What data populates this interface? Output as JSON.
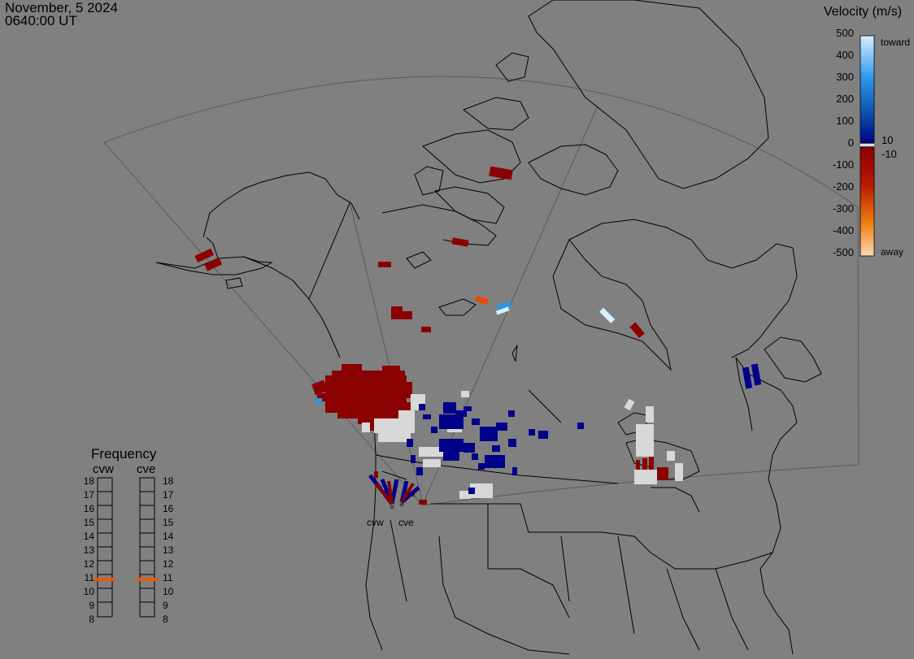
{
  "header": {
    "date": "November, 5 2024",
    "time": "0640:00 UT"
  },
  "colorbar": {
    "title": "Velocity (m/s)",
    "ticks": [
      "500",
      "400",
      "300",
      "200",
      "100",
      "0",
      "-100",
      "-200",
      "-300",
      "-400",
      "-500"
    ],
    "near_zero_pos": "10",
    "near_zero_neg": "-10",
    "toward_label": "toward",
    "away_label": "away",
    "colors": {
      "toward_high": "#d8f0ff",
      "toward_mid": "#2a96ea",
      "toward_low": "#000088",
      "away_low": "#8b0000",
      "away_mid": "#e85a0a",
      "away_high": "#ffd8b8"
    }
  },
  "frequency_panel": {
    "title": "Frequency",
    "columns": [
      {
        "name": "cvw",
        "selected_mhz": 11
      },
      {
        "name": "cve",
        "selected_mhz": 11
      }
    ],
    "scale": [
      "18",
      "17",
      "16",
      "15",
      "14",
      "13",
      "12",
      "11",
      "10",
      "9",
      "8"
    ],
    "marker_color": "#e85a0a"
  },
  "radars": [
    {
      "name": "cvw"
    },
    {
      "name": "cve"
    }
  ],
  "colors": {
    "background": "#808080",
    "coastline": "#000000",
    "fov_border": "#5a5a5a",
    "ground_scatter": "#d8d8d8"
  }
}
